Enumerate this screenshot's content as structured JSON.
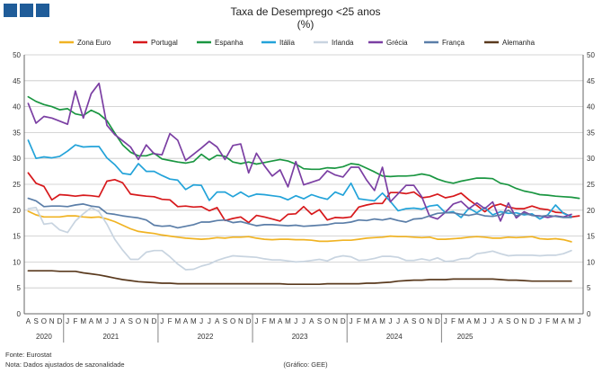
{
  "header": {
    "logo": "logo-squares"
  },
  "footer": {
    "source": "Fonte: Eurostat",
    "note": "Nota: Dados ajustados de sazonalidade",
    "credit": "(Gráfico: GEE)"
  },
  "colors": {
    "grid": "#c8c8c8",
    "axis": "#666666",
    "logo": "#1f5c99"
  },
  "chart_data": {
    "type": "line",
    "title": "Taxa de Desemprego <25 anos",
    "subtitle": "(%)",
    "ylim": [
      0,
      50
    ],
    "yticks": [
      0,
      5,
      10,
      15,
      20,
      25,
      30,
      35,
      40,
      45,
      50
    ],
    "grid": true,
    "legend_position": "top",
    "x_month_labels": [
      "A",
      "S",
      "O",
      "N",
      "D",
      "J",
      "F",
      "M",
      "A",
      "M",
      "J",
      "J",
      "A",
      "S",
      "O",
      "N",
      "D",
      "J",
      "F",
      "M",
      "A",
      "M",
      "J",
      "J",
      "A",
      "S",
      "O",
      "N",
      "D",
      "J",
      "F",
      "M",
      "A",
      "M",
      "J",
      "J",
      "A",
      "S",
      "O",
      "N",
      "D",
      "J",
      "F",
      "M",
      "A",
      "M",
      "J",
      "J",
      "A",
      "S",
      "O",
      "N",
      "D",
      "J",
      "F",
      "M",
      "A",
      "M",
      "J",
      "J",
      "A",
      "S",
      "O",
      "N",
      "D",
      "J",
      "F",
      "M",
      "A",
      "M",
      "J"
    ],
    "year_groups": [
      {
        "label": "2020",
        "start": 0,
        "end": 4
      },
      {
        "label": "2021",
        "start": 5,
        "end": 16
      },
      {
        "label": "2022",
        "start": 17,
        "end": 28
      },
      {
        "label": "2023",
        "start": 29,
        "end": 40
      },
      {
        "label": "2024",
        "start": 41,
        "end": 52
      },
      {
        "label": "2025",
        "start": 53,
        "end": 58
      }
    ],
    "series": [
      {
        "name": "Zona Euro",
        "color": "#f0b323",
        "values": [
          19.8,
          19.1,
          18.7,
          18.7,
          18.7,
          18.9,
          18.9,
          18.7,
          18.6,
          18.7,
          18.3,
          17.8,
          17.1,
          16.4,
          15.9,
          15.7,
          15.5,
          15.2,
          15.0,
          14.8,
          14.6,
          14.5,
          14.4,
          14.5,
          14.7,
          14.6,
          14.8,
          14.8,
          14.9,
          14.6,
          14.4,
          14.3,
          14.4,
          14.4,
          14.3,
          14.3,
          14.2,
          14.0,
          14.0,
          14.1,
          14.2,
          14.2,
          14.4,
          14.6,
          14.7,
          14.8,
          15.0,
          14.9,
          14.9,
          14.8,
          14.7,
          14.8,
          14.4,
          14.4,
          14.5,
          14.6,
          14.8,
          14.9,
          14.8,
          14.6,
          14.6,
          14.8,
          14.7,
          14.8,
          14.9,
          14.5,
          14.4,
          14.5,
          14.3,
          13.9
        ]
      },
      {
        "name": "Portugal",
        "color": "#d7191c",
        "values": [
          27.2,
          25.2,
          24.6,
          22.0,
          23.0,
          22.9,
          22.7,
          22.9,
          22.8,
          22.6,
          25.6,
          25.9,
          25.3,
          23.1,
          22.9,
          22.7,
          22.6,
          22.1,
          22.0,
          20.7,
          20.8,
          20.6,
          20.7,
          19.9,
          20.5,
          18.0,
          18.4,
          18.7,
          17.6,
          19.0,
          18.7,
          18.3,
          17.9,
          19.2,
          19.3,
          20.7,
          19.2,
          20.1,
          18.1,
          18.6,
          18.5,
          18.7,
          20.6,
          21.0,
          21.3,
          21.3,
          23.4,
          23.4,
          23.2,
          23.5,
          22.4,
          22.6,
          23.1,
          22.4,
          22.7,
          23.3,
          22.0,
          20.9,
          19.7,
          20.8,
          21.2,
          20.6,
          20.3,
          20.3,
          20.8,
          20.3,
          20.1,
          19.6,
          19.5,
          18.7,
          18.9
        ]
      },
      {
        "name": "Espanha",
        "color": "#1a9641",
        "values": [
          41.9,
          41.0,
          40.4,
          40.0,
          39.4,
          39.6,
          38.6,
          38.3,
          39.3,
          38.6,
          37.3,
          34.9,
          32.6,
          31.2,
          30.5,
          30.5,
          31.0,
          29.9,
          29.6,
          29.3,
          29.1,
          29.4,
          30.8,
          29.7,
          30.6,
          30.4,
          29.3,
          29.0,
          29.3,
          28.9,
          29.2,
          29.5,
          29.8,
          29.5,
          28.9,
          28.0,
          27.9,
          27.9,
          28.2,
          28.1,
          28.4,
          29.0,
          28.8,
          28.1,
          27.4,
          26.6,
          26.5,
          26.6,
          26.6,
          26.7,
          27.0,
          26.7,
          26.0,
          25.5,
          25.2,
          25.6,
          25.9,
          26.2,
          26.2,
          26.1,
          25.2,
          24.9,
          24.2,
          23.7,
          23.4,
          23.0,
          22.9,
          22.7,
          22.6,
          22.5,
          22.3
        ]
      },
      {
        "name": "Itália",
        "color": "#23a3d9",
        "values": [
          33.5,
          30.0,
          30.3,
          30.1,
          30.4,
          31.4,
          32.6,
          32.2,
          32.3,
          32.3,
          30.1,
          28.8,
          27.1,
          26.9,
          29.0,
          27.5,
          27.5,
          26.7,
          26.0,
          25.8,
          24.0,
          24.9,
          24.8,
          21.9,
          23.5,
          23.5,
          22.6,
          23.5,
          22.6,
          23.1,
          23.0,
          22.8,
          22.6,
          22.0,
          22.8,
          22.2,
          23.0,
          22.5,
          22.1,
          23.5,
          22.9,
          25.2,
          22.2,
          22.0,
          21.8,
          23.3,
          21.7,
          19.9,
          20.3,
          20.4,
          20.2,
          20.8,
          21.0,
          19.5,
          19.7,
          18.6,
          20.4,
          19.5,
          20.5,
          19.1,
          19.7,
          19.4,
          19.5,
          19.1,
          19.3,
          18.3,
          19.1,
          21.0,
          19.4,
          18.8
        ]
      },
      {
        "name": "Irlanda",
        "color": "#c8d4e0",
        "values": [
          20.3,
          20.5,
          17.3,
          17.5,
          16.2,
          15.7,
          17.9,
          19.3,
          20.5,
          19.7,
          17.3,
          14.4,
          12.3,
          10.5,
          10.5,
          11.9,
          12.2,
          12.2,
          11.0,
          9.6,
          8.5,
          8.6,
          9.2,
          9.6,
          10.3,
          10.8,
          11.2,
          11.1,
          11.0,
          10.9,
          10.6,
          10.4,
          10.4,
          10.2,
          10.0,
          10.1,
          10.3,
          10.5,
          10.2,
          10.9,
          11.2,
          11.0,
          10.3,
          10.4,
          10.7,
          11.1,
          11.1,
          10.9,
          10.3,
          10.3,
          10.6,
          10.3,
          10.8,
          10.1,
          10.2,
          10.6,
          10.7,
          11.6,
          11.8,
          12.1,
          11.6,
          11.2,
          11.3,
          11.3,
          11.3,
          11.2,
          11.3,
          11.3,
          11.6,
          12.2
        ]
      },
      {
        "name": "Grécia",
        "color": "#7b3fa3",
        "values": [
          40.6,
          36.8,
          38.1,
          37.8,
          37.2,
          36.6,
          43.0,
          37.8,
          42.5,
          44.5,
          36.4,
          34.6,
          33.4,
          32.2,
          29.8,
          32.6,
          30.9,
          30.7,
          34.8,
          33.5,
          29.6,
          30.8,
          32.0,
          33.3,
          32.2,
          29.8,
          32.5,
          32.8,
          27.2,
          31.0,
          28.6,
          26.6,
          27.8,
          24.5,
          29.4,
          24.9,
          25.4,
          25.9,
          27.6,
          26.8,
          26.4,
          28.3,
          28.3,
          25.8,
          23.8,
          28.3,
          21.6,
          23.2,
          24.8,
          24.8,
          22.6,
          18.8,
          18.3,
          19.6,
          21.2,
          21.7,
          20.3,
          21.4,
          20.3,
          21.6,
          17.9,
          21.4,
          18.5,
          19.7,
          19.0,
          18.9,
          18.6,
          18.9,
          18.7,
          19.2
        ]
      },
      {
        "name": "França",
        "color": "#5b7ea8",
        "values": [
          22.3,
          21.8,
          20.7,
          20.8,
          20.8,
          20.7,
          21.0,
          21.2,
          20.8,
          20.6,
          19.4,
          19.2,
          18.9,
          18.7,
          18.5,
          18.1,
          17.1,
          16.9,
          17.0,
          16.6,
          16.9,
          17.2,
          17.7,
          17.7,
          18.0,
          18.1,
          17.6,
          17.8,
          17.4,
          17.0,
          17.2,
          17.2,
          17.1,
          17.0,
          17.1,
          16.9,
          17.0,
          17.1,
          17.2,
          17.5,
          17.5,
          17.7,
          18.1,
          18.0,
          18.3,
          18.1,
          18.4,
          18.0,
          17.7,
          18.3,
          18.4,
          18.9,
          19.4,
          19.5,
          19.5,
          19.2,
          19.0,
          19.3,
          18.9,
          18.8,
          19.1,
          20.0,
          18.9,
          19.4,
          19.0,
          18.8,
          19.0,
          18.8,
          18.6,
          18.6
        ]
      },
      {
        "name": "Alemanha",
        "color": "#5a3a1e",
        "values": [
          8.3,
          8.3,
          8.3,
          8.3,
          8.2,
          8.2,
          8.2,
          7.9,
          7.7,
          7.5,
          7.2,
          6.9,
          6.6,
          6.4,
          6.2,
          6.1,
          6.0,
          5.9,
          5.9,
          5.8,
          5.8,
          5.8,
          5.8,
          5.8,
          5.8,
          5.8,
          5.8,
          5.8,
          5.8,
          5.8,
          5.8,
          5.8,
          5.8,
          5.7,
          5.7,
          5.7,
          5.7,
          5.7,
          5.8,
          5.8,
          5.8,
          5.8,
          5.8,
          5.9,
          5.9,
          6.0,
          6.1,
          6.3,
          6.4,
          6.5,
          6.5,
          6.6,
          6.6,
          6.6,
          6.7,
          6.7,
          6.7,
          6.7,
          6.7,
          6.7,
          6.6,
          6.5,
          6.5,
          6.4,
          6.3,
          6.3,
          6.3,
          6.3,
          6.3,
          6.3
        ]
      }
    ]
  }
}
